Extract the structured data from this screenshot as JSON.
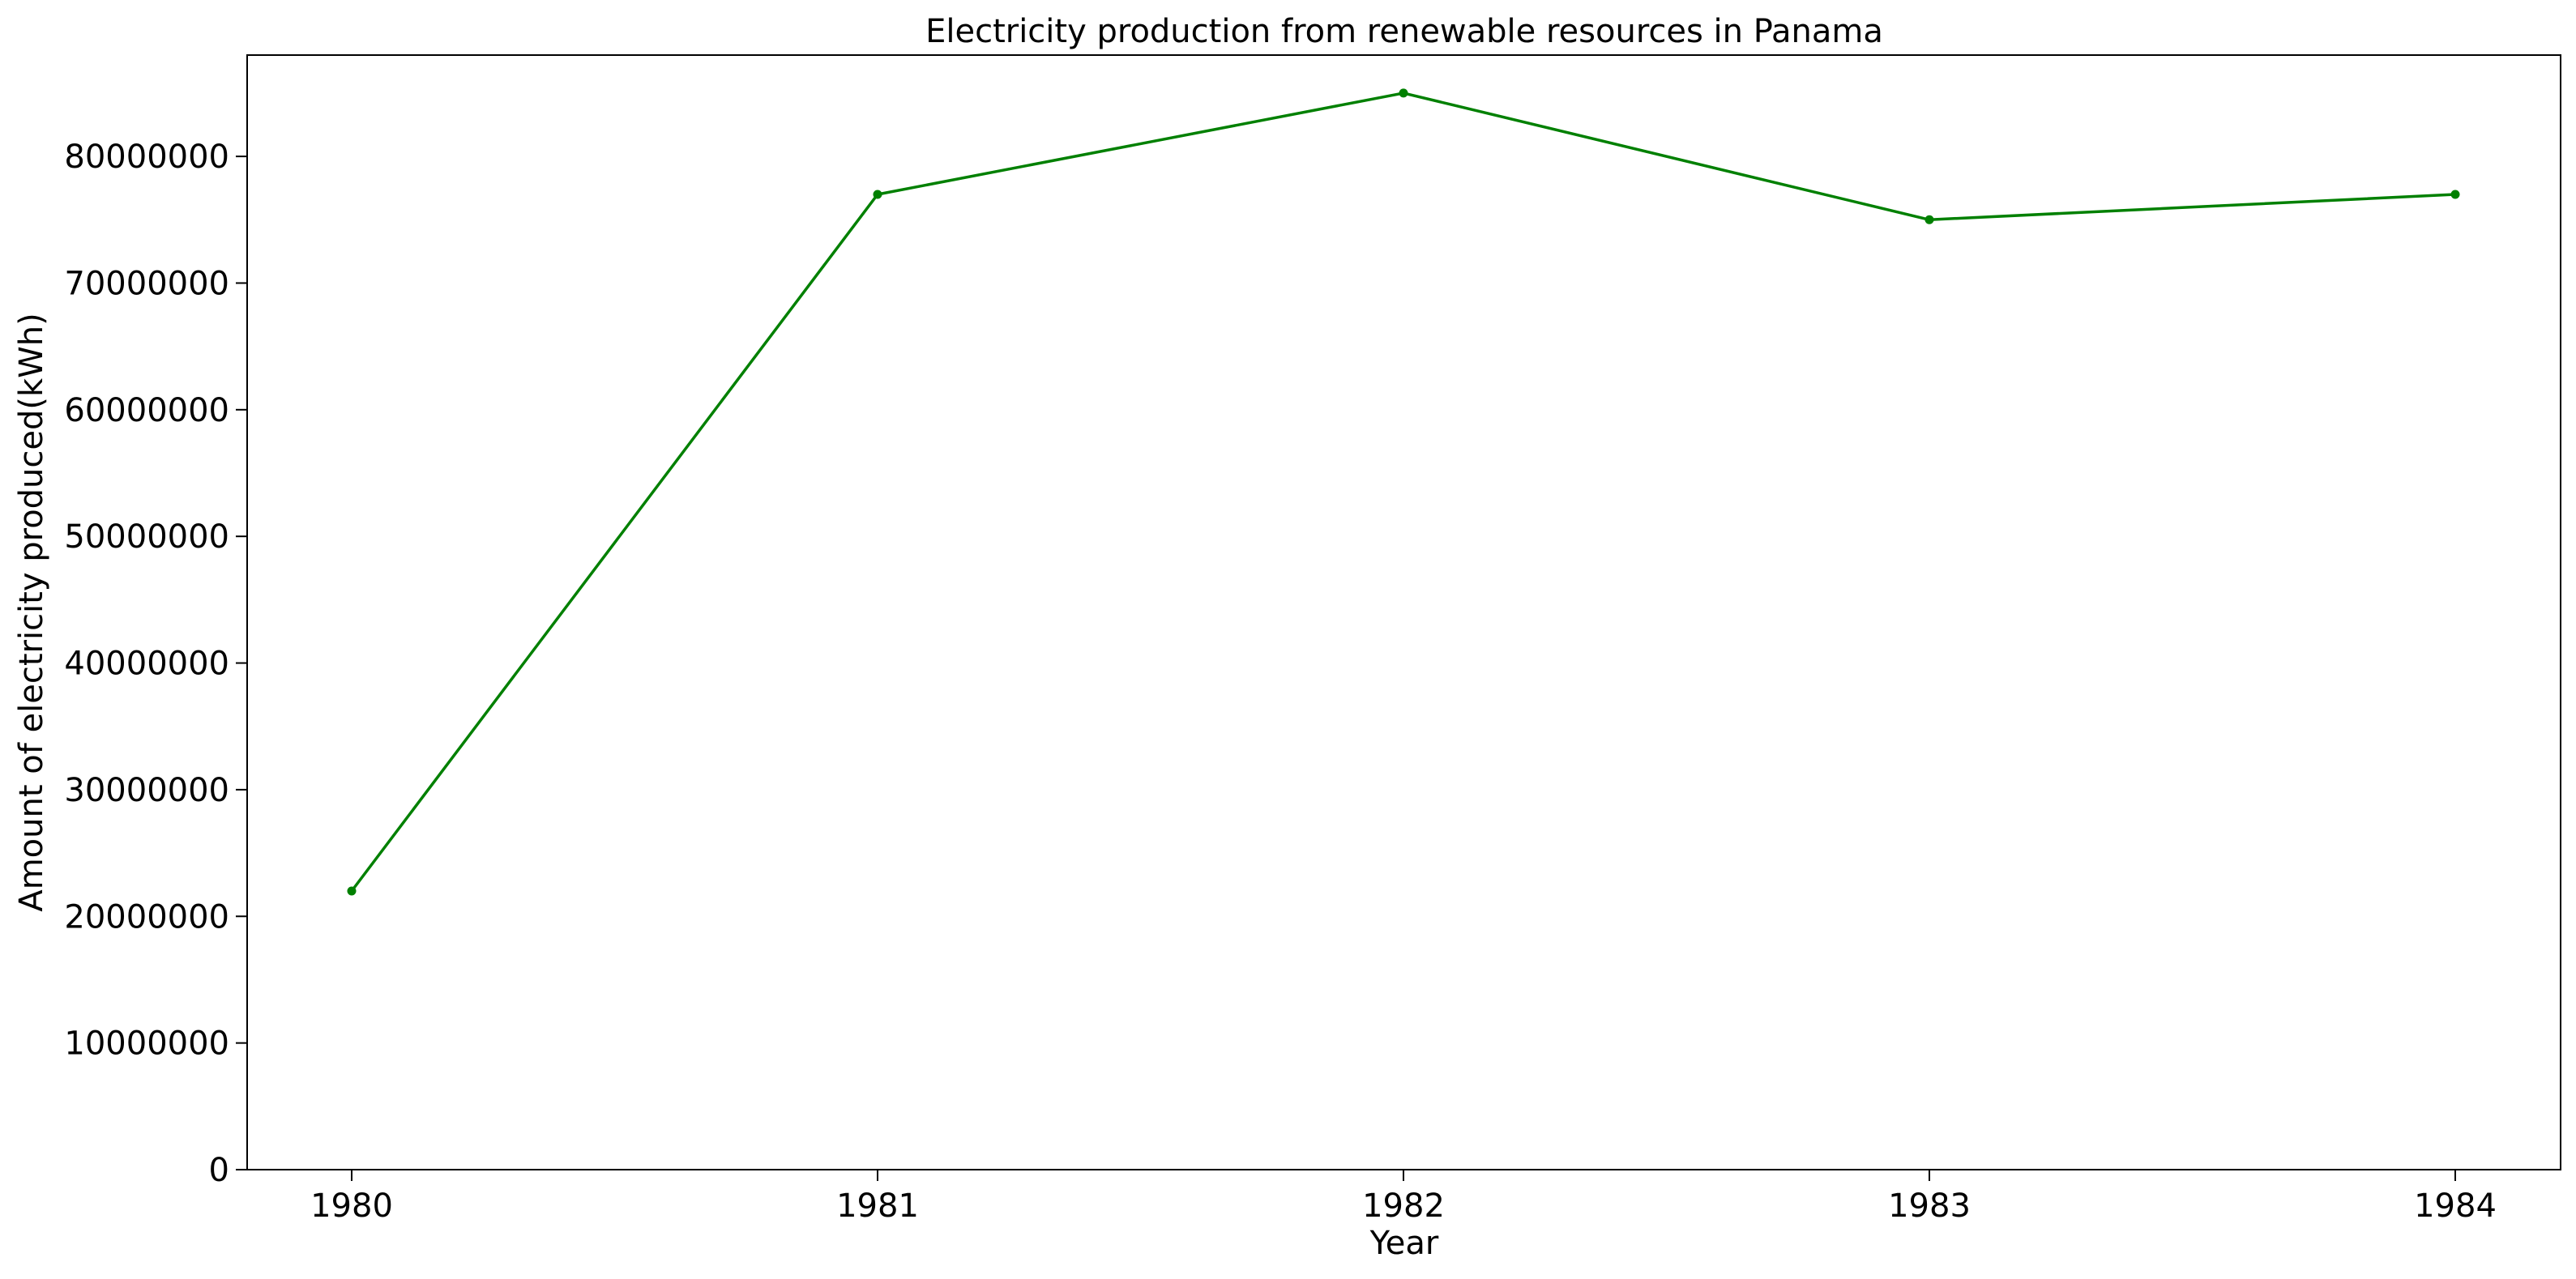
{
  "chart_data": {
    "type": "line",
    "title": "Electricity production from renewable resources in Panama",
    "xlabel": "Year",
    "ylabel": "Amount of electricity produced(kWh)",
    "x": [
      "1980",
      "1981",
      "1982",
      "1983",
      "1984"
    ],
    "series": [
      {
        "values": [
          22000000,
          77000000,
          85000000,
          75000000,
          77000000
        ],
        "color": "#008000",
        "marker": "circle"
      }
    ],
    "yticks": [
      0,
      10000000,
      20000000,
      30000000,
      40000000,
      50000000,
      60000000,
      70000000,
      80000000
    ],
    "ylim": [
      0,
      88000000
    ],
    "grid": false,
    "legend": "none"
  }
}
